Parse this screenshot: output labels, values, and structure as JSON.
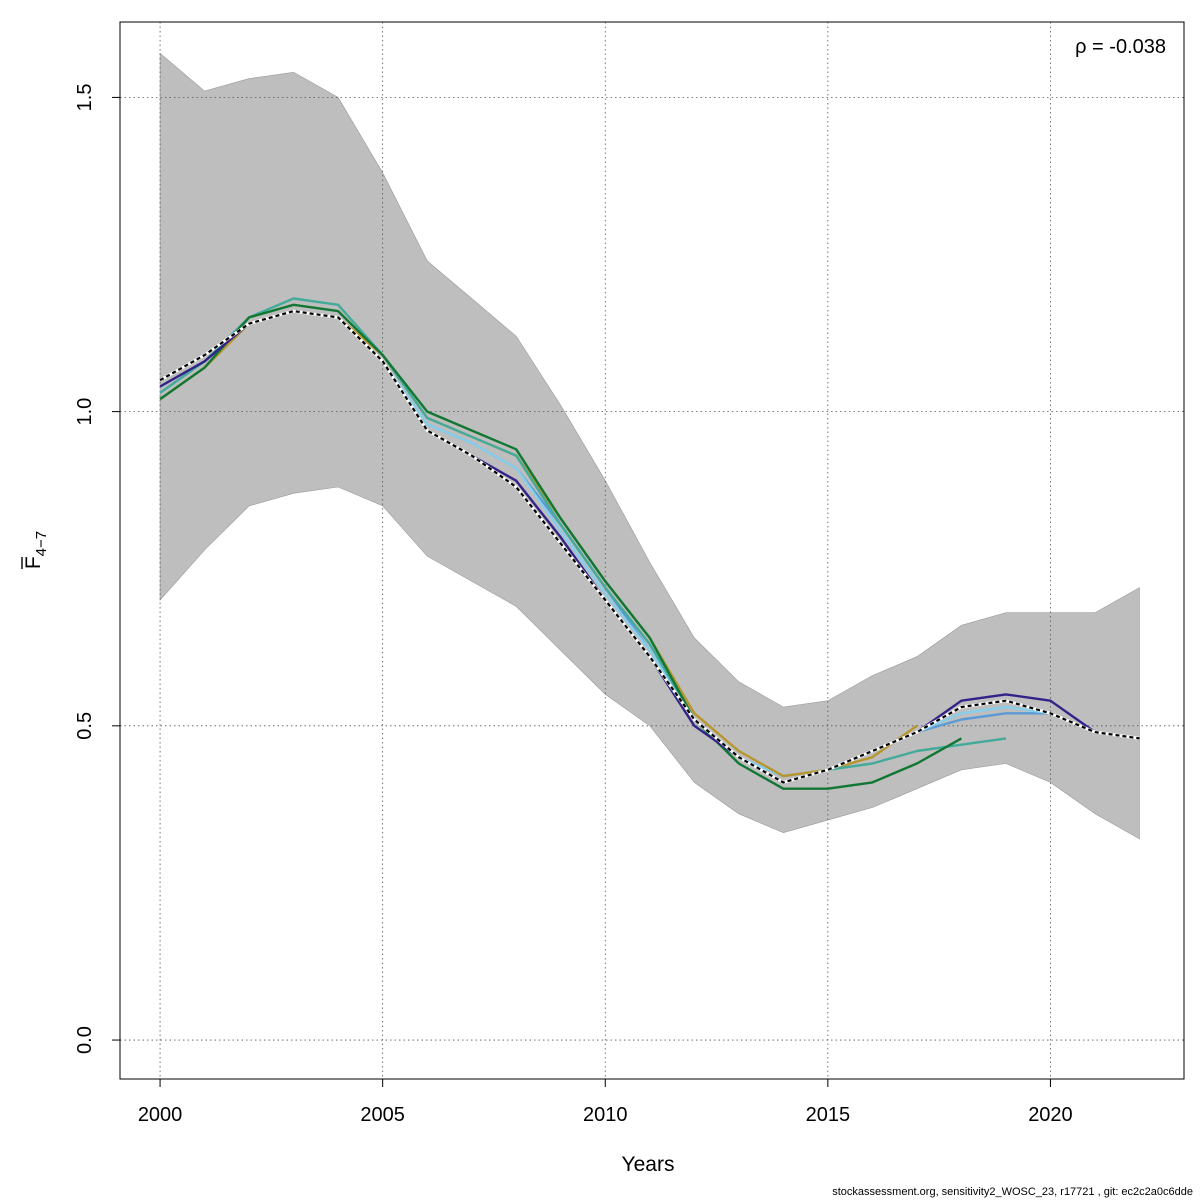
{
  "chart_data": {
    "type": "line",
    "xlabel": "Years",
    "ylabel_main": "F",
    "ylabel_sub": "4−7",
    "annotation": "ρ = -0.038",
    "footer": "stockassessment.org, sensitivity2_WOSC_23, r17721 , git: ec2c2a0c6dde",
    "xlim": [
      1999.1,
      2023.0
    ],
    "ylim": [
      -0.062,
      1.62
    ],
    "xticks": [
      2000,
      2005,
      2010,
      2015,
      2020
    ],
    "yticks": [
      0.0,
      0.5,
      1.0,
      1.5
    ],
    "ytick_labels": [
      "0.0",
      "0.5",
      "1.0",
      "1.5"
    ],
    "grid": true,
    "band_color": "#bebebe",
    "band": {
      "x": [
        2000,
        2001,
        2002,
        2003,
        2004,
        2005,
        2006,
        2007,
        2008,
        2009,
        2010,
        2011,
        2012,
        2013,
        2014,
        2015,
        2016,
        2017,
        2018,
        2019,
        2020,
        2021,
        2022
      ],
      "upper": [
        1.57,
        1.51,
        1.53,
        1.54,
        1.5,
        1.38,
        1.24,
        1.18,
        1.12,
        1.01,
        0.89,
        0.76,
        0.64,
        0.57,
        0.53,
        0.54,
        0.58,
        0.61,
        0.66,
        0.68,
        0.68,
        0.68,
        0.72
      ],
      "lower": [
        0.7,
        0.78,
        0.85,
        0.87,
        0.88,
        0.85,
        0.77,
        0.73,
        0.69,
        0.62,
        0.55,
        0.5,
        0.41,
        0.36,
        0.33,
        0.35,
        0.37,
        0.4,
        0.43,
        0.44,
        0.41,
        0.36,
        0.32
      ]
    },
    "series": [
      {
        "color": "#5b9bd5",
        "dash": false,
        "x": [
          2000,
          2001,
          2002,
          2003,
          2004,
          2005,
          2006,
          2007,
          2008,
          2009,
          2010,
          2011,
          2012,
          2013,
          2014,
          2015,
          2016,
          2017,
          2018,
          2019,
          2020
        ],
        "values": [
          1.03,
          1.08,
          1.14,
          1.16,
          1.15,
          1.08,
          0.98,
          0.95,
          0.91,
          0.82,
          0.72,
          0.62,
          0.51,
          0.45,
          0.42,
          0.43,
          0.46,
          0.49,
          0.51,
          0.52,
          0.52
        ]
      },
      {
        "color": "#87ceeb",
        "dash": false,
        "x": [
          2000,
          2001,
          2002,
          2003,
          2004,
          2005,
          2006,
          2007,
          2008,
          2009,
          2010,
          2011,
          2012,
          2013,
          2014,
          2015,
          2016,
          2017,
          2018,
          2019,
          2020
        ],
        "values": [
          1.03,
          1.08,
          1.14,
          1.16,
          1.15,
          1.08,
          0.98,
          0.95,
          0.91,
          0.81,
          0.71,
          0.62,
          0.51,
          0.45,
          0.42,
          0.43,
          0.46,
          0.49,
          0.52,
          0.53,
          0.52
        ]
      },
      {
        "color": "#b8962e",
        "dash": false,
        "x": [
          2000,
          2001,
          2002,
          2003,
          2004,
          2005,
          2006,
          2007,
          2008,
          2009,
          2010,
          2011,
          2012,
          2013,
          2014,
          2015,
          2016,
          2017
        ],
        "values": [
          1.02,
          1.07,
          1.14,
          1.16,
          1.15,
          1.09,
          0.99,
          0.96,
          0.93,
          0.83,
          0.73,
          0.64,
          0.52,
          0.46,
          0.42,
          0.43,
          0.45,
          0.5
        ]
      },
      {
        "color": "#44aa99",
        "dash": false,
        "x": [
          2000,
          2001,
          2002,
          2003,
          2004,
          2005,
          2006,
          2007,
          2008,
          2009,
          2010,
          2011,
          2012,
          2013,
          2014,
          2015,
          2016,
          2017,
          2018,
          2019
        ],
        "values": [
          1.03,
          1.08,
          1.15,
          1.18,
          1.17,
          1.09,
          0.99,
          0.96,
          0.93,
          0.82,
          0.72,
          0.63,
          0.51,
          0.45,
          0.41,
          0.43,
          0.44,
          0.46,
          0.47,
          0.48
        ]
      },
      {
        "color": "#117733",
        "dash": false,
        "x": [
          2000,
          2001,
          2002,
          2003,
          2004,
          2005,
          2006,
          2007,
          2008,
          2009,
          2010,
          2011,
          2012,
          2013,
          2014,
          2015,
          2016,
          2017,
          2018
        ],
        "values": [
          1.02,
          1.07,
          1.15,
          1.17,
          1.16,
          1.09,
          1.0,
          0.97,
          0.94,
          0.83,
          0.73,
          0.64,
          0.51,
          0.44,
          0.4,
          0.4,
          0.41,
          0.44,
          0.48
        ]
      },
      {
        "color": "#332288",
        "dash": false,
        "x": [
          2000,
          2001,
          2002,
          2003,
          2004,
          2005,
          2006,
          2007,
          2008,
          2009,
          2010,
          2011,
          2012,
          2013,
          2014,
          2015,
          2016,
          2017,
          2018,
          2019,
          2020,
          2021
        ],
        "values": [
          1.04,
          1.08,
          1.14,
          1.16,
          1.15,
          1.08,
          0.97,
          0.93,
          0.89,
          0.8,
          0.7,
          0.61,
          0.5,
          0.45,
          0.41,
          0.43,
          0.46,
          0.49,
          0.54,
          0.55,
          0.54,
          0.49
        ]
      },
      {
        "color": "#000000",
        "dash": true,
        "x": [
          2000,
          2001,
          2002,
          2003,
          2004,
          2005,
          2006,
          2007,
          2008,
          2009,
          2010,
          2011,
          2012,
          2013,
          2014,
          2015,
          2016,
          2017,
          2018,
          2019,
          2020,
          2021,
          2022
        ],
        "values": [
          1.05,
          1.09,
          1.14,
          1.16,
          1.15,
          1.08,
          0.97,
          0.93,
          0.88,
          0.79,
          0.7,
          0.61,
          0.51,
          0.45,
          0.41,
          0.43,
          0.46,
          0.49,
          0.53,
          0.54,
          0.52,
          0.49,
          0.48
        ]
      }
    ]
  }
}
